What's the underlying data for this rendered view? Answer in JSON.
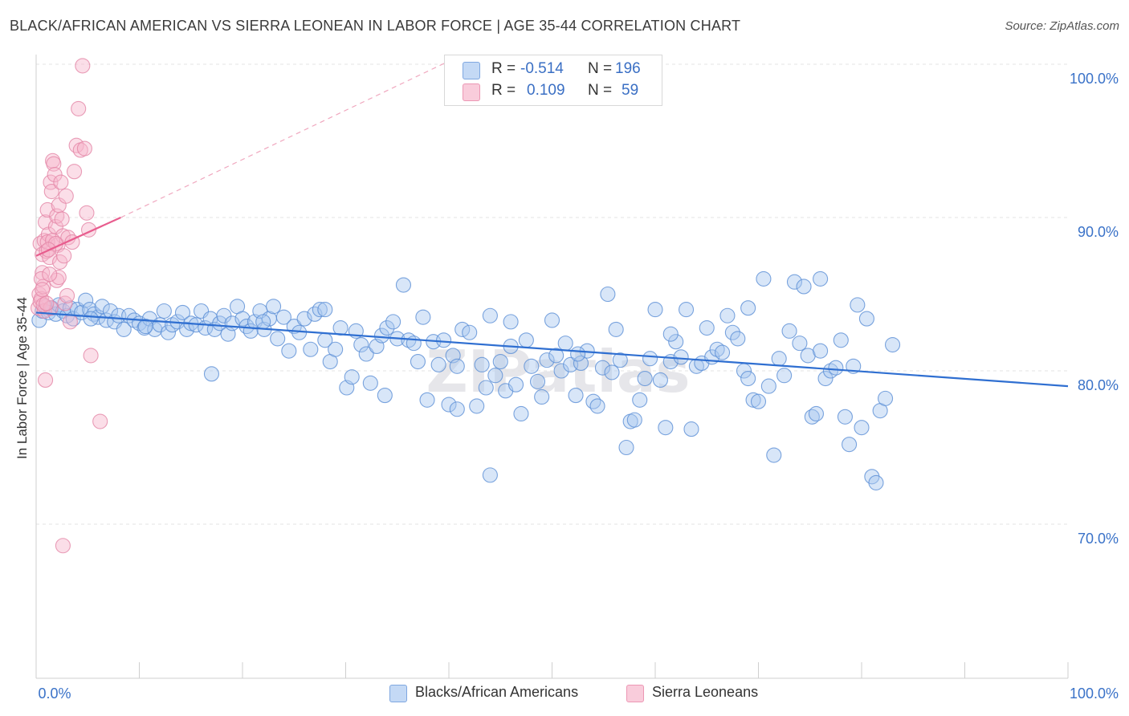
{
  "title": "BLACK/AFRICAN AMERICAN VS SIERRA LEONEAN IN LABOR FORCE | AGE 35-44 CORRELATION CHART",
  "source": "Source: ZipAtlas.com",
  "watermark": "ZIPatlas",
  "legend_top": [
    {
      "r_label": "R =",
      "r_value": "-0.514",
      "n_label": "N =",
      "n_value": "196",
      "color": "#a9c7ef"
    },
    {
      "r_label": "R =",
      "r_value": "0.109",
      "n_label": "N =",
      "n_value": "59",
      "color": "#f6b6cb"
    }
  ],
  "legend_bottom": [
    {
      "label": "Blacks/African Americans",
      "color": "#a9c7ef"
    },
    {
      "label": "Sierra Leoneans",
      "color": "#f6b6cb"
    }
  ],
  "chart_data": {
    "type": "scatter",
    "title": "BLACK/AFRICAN AMERICAN VS SIERRA LEONEAN IN LABOR FORCE | AGE 35-44 CORRELATION CHART",
    "xlabel": "",
    "ylabel": "In Labor Force | Age 35-44",
    "xlim": [
      0,
      100
    ],
    "ylim": [
      60,
      103
    ],
    "x_tick_labels": [
      "0.0%",
      "100.0%"
    ],
    "y_ticks": [
      70,
      80,
      90,
      100
    ],
    "y_tick_labels": [
      "70.0%",
      "80.0%",
      "90.0%",
      "100.0%"
    ],
    "grid": true,
    "series": [
      {
        "name": "Blacks/African Americans",
        "color": "#a9c7ef",
        "stroke": "#5b8fd6",
        "r": -0.514,
        "n": 196,
        "trend": {
          "x": [
            0,
            100
          ],
          "y": [
            83.8,
            79.0
          ],
          "color": "#2f6fd1"
        },
        "points": [
          [
            0.3,
            83.3
          ],
          [
            0.6,
            83.9
          ],
          [
            0.9,
            84.2
          ],
          [
            1.2,
            83.8
          ],
          [
            1.5,
            84.1
          ],
          [
            1.9,
            83.7
          ],
          [
            2.2,
            84.3
          ],
          [
            2.6,
            83.9
          ],
          [
            3.0,
            83.6
          ],
          [
            3.3,
            84.1
          ],
          [
            3.6,
            83.4
          ],
          [
            4.0,
            84.0
          ],
          [
            4.4,
            83.8
          ],
          [
            4.8,
            84.6
          ],
          [
            5.2,
            84.0
          ],
          [
            5.6,
            83.7
          ],
          [
            6.0,
            83.5
          ],
          [
            6.4,
            84.2
          ],
          [
            6.8,
            83.3
          ],
          [
            7.2,
            83.9
          ],
          [
            7.6,
            83.2
          ],
          [
            8.0,
            83.6
          ],
          [
            8.5,
            82.7
          ],
          [
            9.0,
            83.6
          ],
          [
            9.5,
            83.3
          ],
          [
            10.0,
            83.1
          ],
          [
            10.5,
            82.8
          ],
          [
            11.0,
            83.4
          ],
          [
            11.5,
            82.7
          ],
          [
            12.0,
            83.0
          ],
          [
            12.4,
            83.9
          ],
          [
            12.8,
            82.5
          ],
          [
            13.2,
            83.0
          ],
          [
            13.7,
            83.2
          ],
          [
            14.2,
            83.8
          ],
          [
            14.6,
            82.7
          ],
          [
            15.0,
            83.1
          ],
          [
            15.5,
            83.0
          ],
          [
            16.0,
            83.9
          ],
          [
            16.4,
            82.8
          ],
          [
            16.9,
            83.4
          ],
          [
            17.3,
            82.7
          ],
          [
            17.8,
            83.1
          ],
          [
            18.2,
            83.6
          ],
          [
            18.6,
            82.4
          ],
          [
            19.0,
            83.1
          ],
          [
            19.5,
            84.2
          ],
          [
            20.0,
            83.4
          ],
          [
            20.4,
            82.9
          ],
          [
            20.8,
            82.6
          ],
          [
            21.2,
            83.2
          ],
          [
            21.7,
            83.9
          ],
          [
            22.1,
            82.7
          ],
          [
            22.6,
            83.4
          ],
          [
            23.0,
            84.2
          ],
          [
            23.4,
            82.1
          ],
          [
            24.0,
            83.5
          ],
          [
            24.5,
            81.3
          ],
          [
            25.0,
            82.9
          ],
          [
            25.5,
            82.5
          ],
          [
            26.0,
            83.4
          ],
          [
            26.6,
            81.4
          ],
          [
            27.0,
            83.7
          ],
          [
            27.5,
            84.0
          ],
          [
            28.0,
            82.0
          ],
          [
            28.5,
            80.6
          ],
          [
            29.0,
            81.4
          ],
          [
            29.5,
            82.8
          ],
          [
            30.1,
            78.9
          ],
          [
            30.6,
            79.6
          ],
          [
            31.0,
            82.6
          ],
          [
            31.5,
            81.7
          ],
          [
            32.0,
            81.1
          ],
          [
            32.4,
            79.2
          ],
          [
            33.0,
            81.6
          ],
          [
            33.5,
            82.3
          ],
          [
            34.0,
            82.8
          ],
          [
            34.6,
            83.2
          ],
          [
            35.0,
            82.1
          ],
          [
            35.6,
            85.6
          ],
          [
            36.1,
            82.0
          ],
          [
            36.6,
            81.8
          ],
          [
            37.0,
            80.6
          ],
          [
            37.5,
            83.5
          ],
          [
            37.9,
            78.1
          ],
          [
            38.5,
            81.9
          ],
          [
            39.0,
            80.4
          ],
          [
            39.5,
            82.0
          ],
          [
            40.0,
            77.8
          ],
          [
            40.4,
            81.0
          ],
          [
            40.8,
            80.3
          ],
          [
            41.3,
            82.7
          ],
          [
            42.0,
            82.5
          ],
          [
            42.7,
            77.7
          ],
          [
            43.2,
            80.4
          ],
          [
            43.6,
            78.9
          ],
          [
            44.0,
            83.6
          ],
          [
            44.5,
            79.7
          ],
          [
            45.0,
            80.6
          ],
          [
            45.5,
            78.7
          ],
          [
            46.0,
            81.6
          ],
          [
            46.5,
            79.1
          ],
          [
            47.0,
            77.2
          ],
          [
            47.5,
            82.0
          ],
          [
            48.0,
            80.3
          ],
          [
            48.6,
            79.3
          ],
          [
            49.0,
            78.3
          ],
          [
            49.5,
            80.7
          ],
          [
            50.0,
            83.3
          ],
          [
            50.4,
            81.0
          ],
          [
            50.9,
            80.0
          ],
          [
            51.3,
            81.8
          ],
          [
            51.8,
            80.4
          ],
          [
            52.3,
            78.4
          ],
          [
            52.8,
            80.5
          ],
          [
            53.4,
            81.3
          ],
          [
            54.0,
            78.0
          ],
          [
            54.4,
            77.7
          ],
          [
            54.9,
            80.2
          ],
          [
            55.4,
            85.0
          ],
          [
            55.8,
            79.9
          ],
          [
            56.2,
            82.7
          ],
          [
            56.6,
            80.7
          ],
          [
            57.2,
            75.0
          ],
          [
            57.6,
            76.7
          ],
          [
            58.0,
            76.8
          ],
          [
            58.5,
            78.1
          ],
          [
            59.0,
            79.5
          ],
          [
            59.5,
            80.8
          ],
          [
            60.0,
            84.0
          ],
          [
            60.5,
            79.4
          ],
          [
            61.0,
            76.3
          ],
          [
            61.5,
            80.6
          ],
          [
            62.0,
            81.9
          ],
          [
            62.5,
            80.9
          ],
          [
            63.0,
            84.0
          ],
          [
            63.5,
            76.2
          ],
          [
            64.0,
            80.3
          ],
          [
            64.5,
            80.5
          ],
          [
            65.0,
            82.8
          ],
          [
            65.5,
            80.9
          ],
          [
            66.0,
            81.4
          ],
          [
            66.5,
            81.2
          ],
          [
            67.0,
            83.6
          ],
          [
            67.5,
            82.5
          ],
          [
            68.0,
            82.1
          ],
          [
            68.6,
            80.0
          ],
          [
            69.0,
            79.5
          ],
          [
            69.5,
            78.1
          ],
          [
            70.0,
            78.0
          ],
          [
            70.5,
            86.0
          ],
          [
            71.0,
            79.0
          ],
          [
            71.5,
            74.5
          ],
          [
            72.0,
            80.8
          ],
          [
            72.5,
            79.7
          ],
          [
            73.0,
            82.6
          ],
          [
            73.5,
            85.8
          ],
          [
            74.0,
            81.8
          ],
          [
            74.4,
            85.5
          ],
          [
            74.8,
            81.0
          ],
          [
            75.2,
            77.0
          ],
          [
            75.6,
            77.2
          ],
          [
            76.0,
            81.3
          ],
          [
            76.5,
            79.5
          ],
          [
            77.0,
            80.0
          ],
          [
            77.5,
            80.2
          ],
          [
            78.0,
            82.0
          ],
          [
            78.4,
            77.0
          ],
          [
            78.8,
            75.2
          ],
          [
            79.2,
            80.3
          ],
          [
            79.6,
            84.3
          ],
          [
            80.0,
            76.3
          ],
          [
            80.5,
            83.4
          ],
          [
            81.0,
            73.1
          ],
          [
            81.4,
            72.7
          ],
          [
            81.8,
            77.4
          ],
          [
            82.3,
            78.2
          ],
          [
            83.0,
            81.7
          ],
          [
            76.0,
            86.0
          ],
          [
            69.0,
            84.1
          ],
          [
            61.5,
            82.4
          ],
          [
            52.5,
            81.1
          ],
          [
            46.0,
            83.2
          ],
          [
            40.8,
            77.5
          ],
          [
            33.8,
            78.4
          ],
          [
            28.0,
            84.0
          ],
          [
            22.0,
            83.2
          ],
          [
            17.0,
            79.8
          ],
          [
            10.6,
            82.9
          ],
          [
            5.3,
            83.4
          ],
          [
            44.0,
            73.2
          ]
        ]
      },
      {
        "name": "Sierra Leoneans",
        "color": "#f6b6cb",
        "stroke": "#e486a6",
        "r": 0.109,
        "n": 59,
        "trend": {
          "x": [
            0,
            8.2
          ],
          "y": [
            87.5,
            90.0
          ],
          "color": "#e85d8e"
        },
        "trend_extension": {
          "x": [
            8.2,
            40
          ],
          "y": [
            90.0,
            100.2
          ]
        },
        "points": [
          [
            0.2,
            84.1
          ],
          [
            0.3,
            85.0
          ],
          [
            0.4,
            84.5
          ],
          [
            0.5,
            84.7
          ],
          [
            0.6,
            86.4
          ],
          [
            0.7,
            85.5
          ],
          [
            0.8,
            83.9
          ],
          [
            0.4,
            88.3
          ],
          [
            0.6,
            87.6
          ],
          [
            0.8,
            88.5
          ],
          [
            0.9,
            89.7
          ],
          [
            1.0,
            87.8
          ],
          [
            1.1,
            90.5
          ],
          [
            1.2,
            88.9
          ],
          [
            1.3,
            87.4
          ],
          [
            1.4,
            92.3
          ],
          [
            1.5,
            91.7
          ],
          [
            1.6,
            93.7
          ],
          [
            1.7,
            93.5
          ],
          [
            1.8,
            92.8
          ],
          [
            1.9,
            89.4
          ],
          [
            2.0,
            90.1
          ],
          [
            2.1,
            88.2
          ],
          [
            2.2,
            90.8
          ],
          [
            2.3,
            87.1
          ],
          [
            2.4,
            92.3
          ],
          [
            2.5,
            89.9
          ],
          [
            2.6,
            88.8
          ],
          [
            2.7,
            87.5
          ],
          [
            2.8,
            84.4
          ],
          [
            2.9,
            91.4
          ],
          [
            3.0,
            84.9
          ],
          [
            3.1,
            88.7
          ],
          [
            3.3,
            83.2
          ],
          [
            3.5,
            88.4
          ],
          [
            3.7,
            93.0
          ],
          [
            3.9,
            94.7
          ],
          [
            4.1,
            97.1
          ],
          [
            4.3,
            94.4
          ],
          [
            4.5,
            99.9
          ],
          [
            4.7,
            94.5
          ],
          [
            4.9,
            90.3
          ],
          [
            5.1,
            89.2
          ],
          [
            5.3,
            81.0
          ],
          [
            0.9,
            79.4
          ],
          [
            1.4,
            84.1
          ],
          [
            2.0,
            85.9
          ],
          [
            2.2,
            86.1
          ],
          [
            0.7,
            84.3
          ],
          [
            1.0,
            84.4
          ],
          [
            1.1,
            88.4
          ],
          [
            1.6,
            88.5
          ],
          [
            1.9,
            88.3
          ],
          [
            6.2,
            76.7
          ],
          [
            2.6,
            68.6
          ],
          [
            0.5,
            86.0
          ],
          [
            0.6,
            85.3
          ],
          [
            1.3,
            86.3
          ],
          [
            1.2,
            87.9
          ]
        ]
      }
    ]
  }
}
